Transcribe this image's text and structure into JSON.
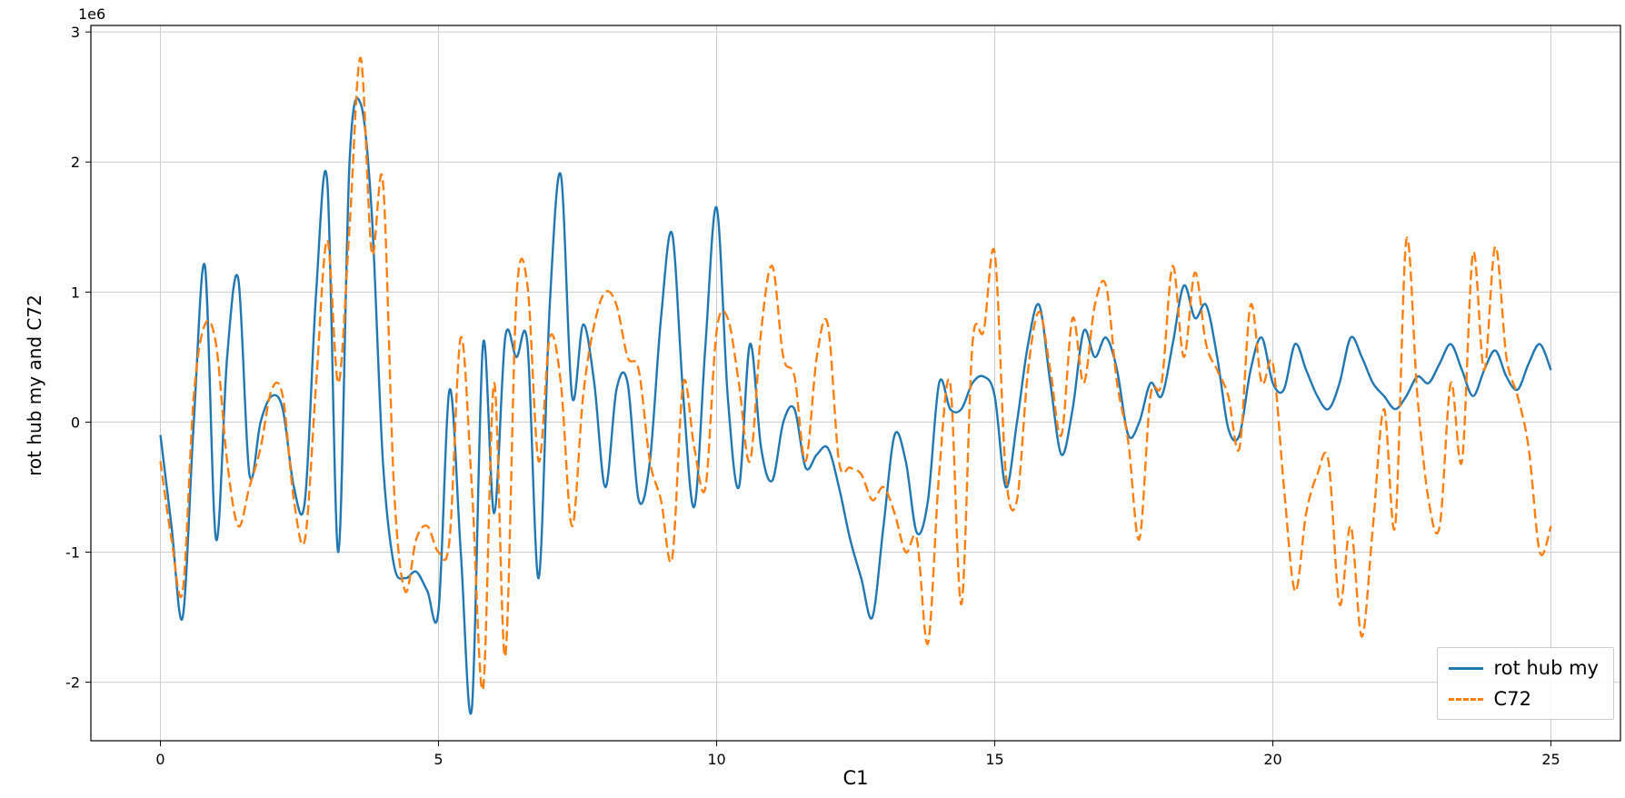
{
  "chart_data": {
    "type": "line",
    "title": "",
    "xlabel": "C1",
    "ylabel": "rot hub my and C72",
    "y_offset_label": "1e6",
    "value_unit": "1e6",
    "grid": true,
    "legend_position": "lower right",
    "xlim": [
      -1.25,
      26.25
    ],
    "ylim": [
      -2.45,
      3.05
    ],
    "xticks": [
      0,
      5,
      10,
      15,
      20,
      25
    ],
    "yticks": [
      -2,
      -1,
      0,
      1,
      2,
      3
    ],
    "grid_color": "#cccccc",
    "spine_color": "#000000",
    "x": [
      0,
      0.2,
      0.4,
      0.6,
      0.8,
      1,
      1.2,
      1.4,
      1.6,
      1.8,
      2,
      2.2,
      2.4,
      2.6,
      2.8,
      3,
      3.2,
      3.4,
      3.6,
      3.8,
      4,
      4.2,
      4.4,
      4.6,
      4.8,
      5,
      5.2,
      5.4,
      5.6,
      5.8,
      6,
      6.2,
      6.4,
      6.6,
      6.8,
      7,
      7.2,
      7.4,
      7.6,
      7.8,
      8,
      8.2,
      8.4,
      8.6,
      8.8,
      9,
      9.2,
      9.4,
      9.6,
      9.8,
      10,
      10.2,
      10.4,
      10.6,
      10.8,
      11,
      11.2,
      11.4,
      11.6,
      11.8,
      12,
      12.2,
      12.4,
      12.6,
      12.8,
      13,
      13.2,
      13.4,
      13.6,
      13.8,
      14,
      14.2,
      14.4,
      14.6,
      14.8,
      15,
      15.2,
      15.4,
      15.6,
      15.8,
      16,
      16.2,
      16.4,
      16.6,
      16.8,
      17,
      17.2,
      17.4,
      17.6,
      17.8,
      18,
      18.2,
      18.4,
      18.6,
      18.8,
      19,
      19.2,
      19.4,
      19.6,
      19.8,
      20,
      20.2,
      20.4,
      20.6,
      20.8,
      21,
      21.2,
      21.4,
      21.6,
      21.8,
      22,
      22.2,
      22.4,
      22.6,
      22.8,
      23,
      23.2,
      23.4,
      23.6,
      23.8,
      24,
      24.2,
      24.4,
      24.6,
      24.8,
      25
    ],
    "series": [
      {
        "name": "rot hub my",
        "color": "#1f77b4",
        "style": "solid",
        "values": [
          -0.1,
          -0.8,
          -1.5,
          0.0,
          1.2,
          -0.9,
          0.5,
          1.1,
          -0.4,
          0.0,
          0.2,
          0.1,
          -0.5,
          -0.6,
          1.0,
          1.85,
          -1.0,
          2.0,
          2.45,
          1.6,
          -0.3,
          -1.1,
          -1.2,
          -1.15,
          -1.3,
          -1.45,
          0.25,
          -1.0,
          -2.2,
          0.6,
          -0.7,
          0.65,
          0.5,
          0.6,
          -1.2,
          0.9,
          1.9,
          0.2,
          0.75,
          0.3,
          -0.5,
          0.25,
          0.3,
          -0.6,
          -0.3,
          0.8,
          1.45,
          0.2,
          -0.65,
          0.6,
          1.65,
          0.2,
          -0.5,
          0.6,
          -0.2,
          -0.45,
          0.0,
          0.1,
          -0.35,
          -0.25,
          -0.2,
          -0.5,
          -0.9,
          -1.2,
          -1.5,
          -0.8,
          -0.1,
          -0.3,
          -0.85,
          -0.6,
          0.3,
          0.1,
          0.1,
          0.3,
          0.35,
          0.2,
          -0.5,
          0.0,
          0.6,
          0.9,
          0.3,
          -0.25,
          0.1,
          0.7,
          0.5,
          0.65,
          0.4,
          -0.1,
          0.0,
          0.3,
          0.2,
          0.6,
          1.05,
          0.8,
          0.9,
          0.5,
          -0.05,
          -0.1,
          0.4,
          0.65,
          0.3,
          0.25,
          0.6,
          0.4,
          0.2,
          0.1,
          0.3,
          0.65,
          0.5,
          0.3,
          0.2,
          0.1,
          0.2,
          0.35,
          0.3,
          0.45,
          0.6,
          0.4,
          0.2,
          0.4,
          0.55,
          0.35,
          0.25,
          0.45,
          0.6,
          0.4
        ]
      },
      {
        "name": "C72",
        "color": "#ff7f0e",
        "style": "dashed",
        "values": [
          -0.3,
          -0.9,
          -1.3,
          0.2,
          0.75,
          0.6,
          -0.3,
          -0.8,
          -0.5,
          -0.2,
          0.25,
          0.2,
          -0.6,
          -0.9,
          0.3,
          1.4,
          0.3,
          1.5,
          2.8,
          1.3,
          1.85,
          -0.5,
          -1.3,
          -0.9,
          -0.8,
          -1.0,
          -0.9,
          0.65,
          -0.5,
          -2.05,
          0.3,
          -1.8,
          0.95,
          1.05,
          -0.3,
          0.65,
          0.3,
          -0.8,
          0.2,
          0.75,
          1.0,
          0.9,
          0.5,
          0.4,
          -0.3,
          -0.6,
          -1.05,
          0.3,
          -0.2,
          -0.5,
          0.7,
          0.8,
          0.3,
          -0.3,
          0.7,
          1.2,
          0.5,
          0.35,
          -0.3,
          0.5,
          0.75,
          -0.3,
          -0.35,
          -0.4,
          -0.6,
          -0.5,
          -0.7,
          -1.0,
          -0.9,
          -1.7,
          -0.4,
          0.3,
          -1.4,
          0.6,
          0.7,
          1.3,
          -0.4,
          -0.6,
          0.4,
          0.85,
          0.4,
          -0.1,
          0.8,
          0.3,
          0.9,
          1.05,
          0.3,
          -0.15,
          -0.9,
          0.2,
          0.3,
          1.2,
          0.5,
          1.15,
          0.6,
          0.4,
          0.2,
          -0.2,
          0.9,
          0.3,
          0.45,
          -0.5,
          -1.3,
          -0.7,
          -0.4,
          -0.3,
          -1.4,
          -0.8,
          -1.65,
          -0.8,
          0.1,
          -0.8,
          1.4,
          0.2,
          -0.6,
          -0.8,
          0.3,
          -0.3,
          1.3,
          0.4,
          1.35,
          0.5,
          0.2,
          -0.2,
          -1.0,
          -0.8
        ]
      }
    ],
    "legend": [
      {
        "label": "rot hub my",
        "color": "#1f77b4",
        "style": "solid"
      },
      {
        "label": "C72",
        "color": "#ff7f0e",
        "style": "dashed"
      }
    ]
  }
}
